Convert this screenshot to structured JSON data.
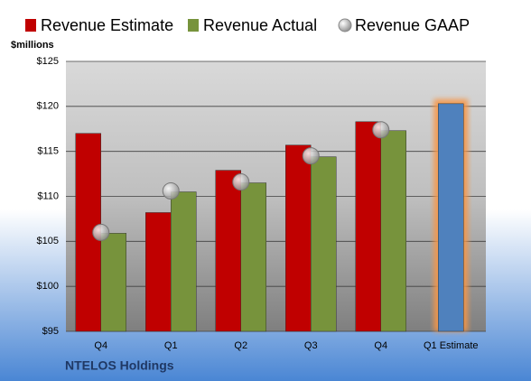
{
  "chart_data": {
    "type": "bar",
    "y_axis_label": "$millions",
    "footer": "NTELOS Holdings",
    "categories": [
      "Q4",
      "Q1",
      "Q2",
      "Q3",
      "Q4",
      "Q1 Estimate"
    ],
    "series": [
      {
        "name": "Revenue Estimate",
        "color": "#c00000",
        "colors": [
          "#c00000",
          "#c00000",
          "#c00000",
          "#c00000",
          "#c00000",
          "#4f81bd"
        ],
        "values": [
          117,
          108.2,
          112.9,
          115.7,
          118.3,
          120.3
        ]
      },
      {
        "name": "Revenue Actual",
        "color": "#77933c",
        "values": [
          105.9,
          110.5,
          111.5,
          114.4,
          117.3,
          null
        ]
      },
      {
        "name": "Revenue GAAP",
        "color": "#bfbfbf",
        "marker": "circle",
        "values": [
          106,
          110.6,
          111.6,
          114.5,
          117.4,
          null
        ]
      }
    ],
    "ylim": [
      95,
      125
    ],
    "yticks": [
      {
        "value": 95,
        "label": "$95"
      },
      {
        "value": 100,
        "label": "$100"
      },
      {
        "value": 105,
        "label": "$105"
      },
      {
        "value": 110,
        "label": "$110"
      },
      {
        "value": 115,
        "label": "$115"
      },
      {
        "value": 120,
        "label": "$120"
      },
      {
        "value": 125,
        "label": "$125"
      }
    ],
    "grid": true
  }
}
